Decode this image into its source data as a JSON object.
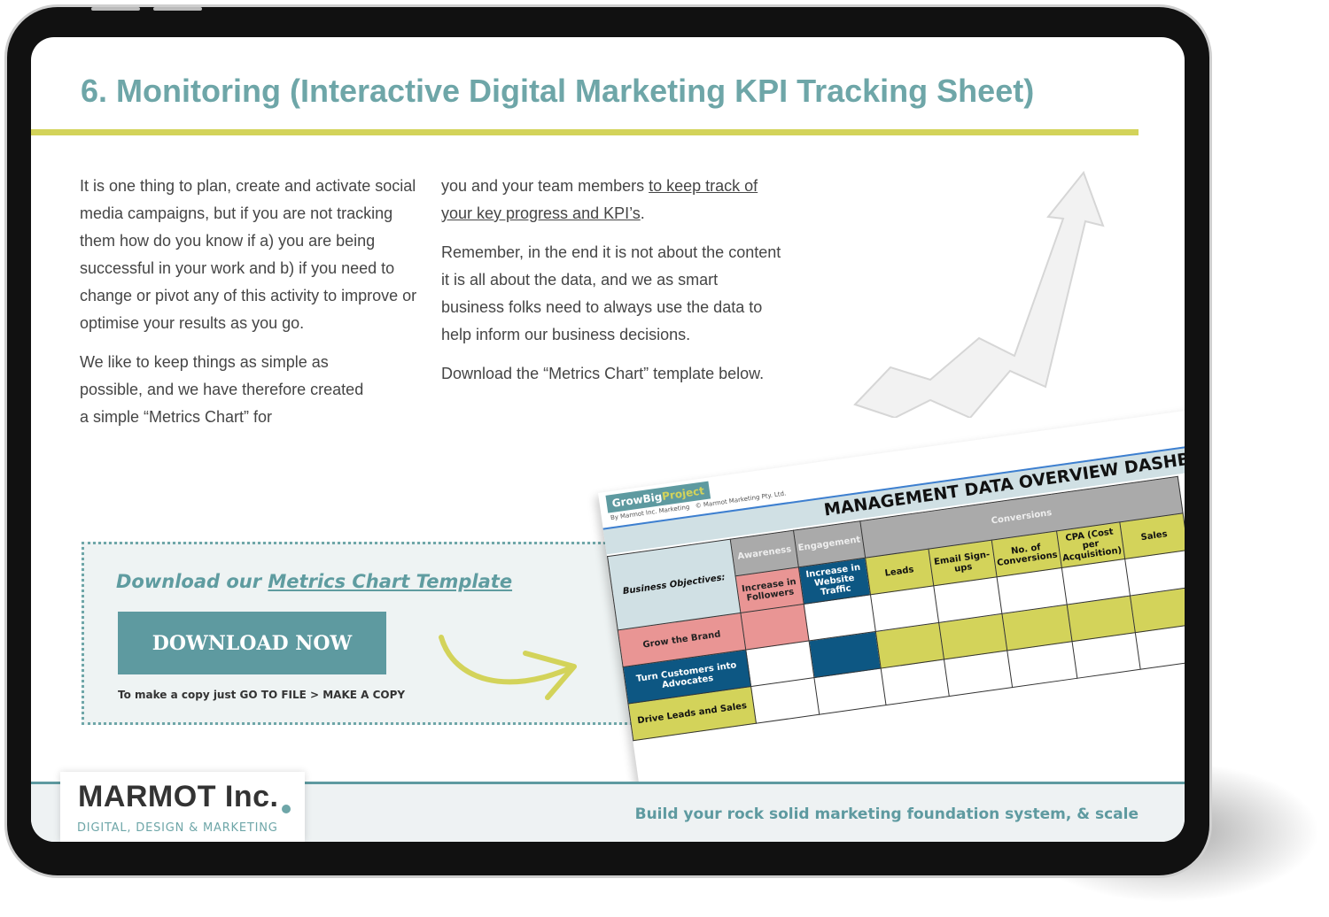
{
  "title": "6. Monitoring (Interactive Digital Marketing KPI Tracking Sheet)",
  "left_column": {
    "p1": "It is one thing to plan, create and activate social media campaigns, but if you are not tracking them how do you know if a) you are being successful in your work and b) if you need to change or pivot any of this activity to improve or optimise your results as you go.",
    "p2": "We like to keep things as simple as possible, and we have therefore created a simple “Metrics Chart” for"
  },
  "right_column": {
    "p1_start": "you and your team members ",
    "p1_link": "to keep track of your key progress and KPI’s",
    "p1_end": ".",
    "p2": "Remember, in the end it is not about the content it is all about the data, and we as smart business folks need to always use the data to help inform our business decisions.",
    "p3": "Download the “Metrics Chart” template below."
  },
  "download": {
    "heading_start": "Download our ",
    "heading_link": "Metrics Chart Template",
    "button": "DOWNLOAD NOW",
    "note": "To make a copy just GO TO FILE > MAKE A COPY"
  },
  "dashboard": {
    "logo_a": "GrowBig",
    "logo_b": "Project",
    "byline": "By Marmot Inc. Marketing",
    "copyright": "© Marmot Marketing Pty. Ltd.",
    "title": "MANAGEMENT DATA OVERVIEW DASHBOARD",
    "groups": [
      "Awareness",
      "Engagement",
      "Conversions"
    ],
    "row_header": "Business Objectives:",
    "columns": [
      "Increase in Followers",
      "Increase in Website Traffic",
      "Leads",
      "Email Sign-ups",
      "No. of Conversions",
      "CPA (Cost per Acquisition)",
      "Sales"
    ],
    "rows": [
      "Grow the Brand",
      "Turn Customers into Advocates",
      "Drive Leads and Sales"
    ]
  },
  "footer": {
    "logo_name": "MARMOT Inc.",
    "logo_sub": "DIGITAL, DESIGN & MARKETING",
    "tagline": "Build your rock solid marketing foundation system, & scale"
  },
  "colors": {
    "teal": "#5e9aa0",
    "accent_yellow": "#d3d35a",
    "pink": "#e99594",
    "navy": "#0d5783"
  }
}
